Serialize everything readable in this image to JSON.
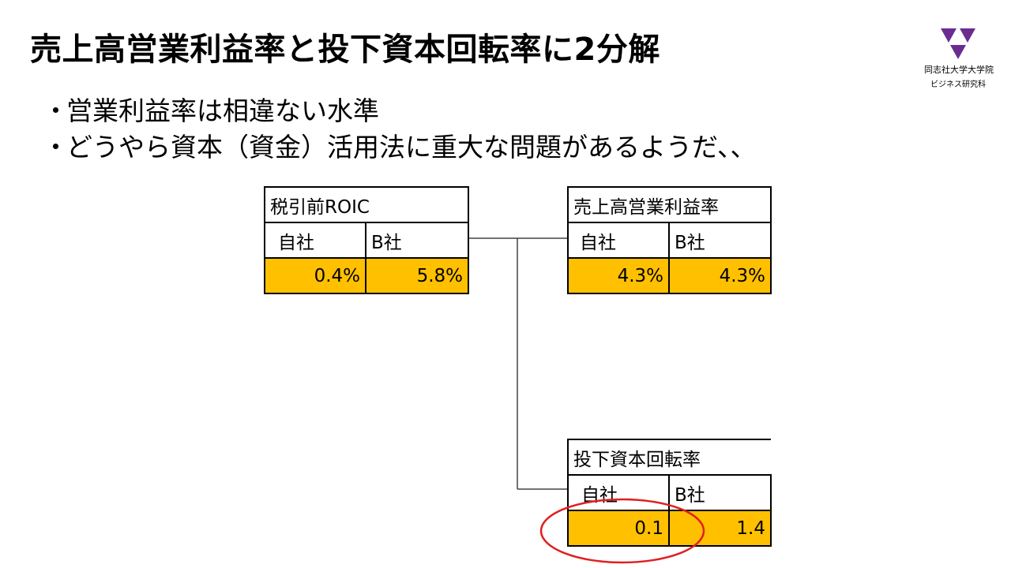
{
  "slide": {
    "title": "売上高営業利益率と投下資本回転率に2分解",
    "bullets": [
      {
        "mark": "・",
        "text": "営業利益率は相違ない水準"
      },
      {
        "mark": "・",
        "text": "どうやら資本（資金）活用法に重大な問題があるようだ、、"
      }
    ]
  },
  "logo": {
    "line1": "同志社大学大学院",
    "line2": "ビジネス研究科",
    "color": "#6B2C91"
  },
  "tables": {
    "roic": {
      "title": "税引前ROIC",
      "columns": [
        "自社",
        "B社"
      ],
      "values": [
        "0.4%",
        "5.8%"
      ]
    },
    "margin": {
      "title": "売上高営業利益率",
      "columns": [
        "自社",
        "B社"
      ],
      "values": [
        "4.3%",
        "4.3%"
      ]
    },
    "turnover": {
      "title": "投下資本回転率",
      "columns": [
        "自社",
        "B社"
      ],
      "values": [
        "0.1",
        "1.4"
      ]
    }
  },
  "colors": {
    "value_fill": "#FFC000",
    "highlight_circle": "#E02020"
  }
}
